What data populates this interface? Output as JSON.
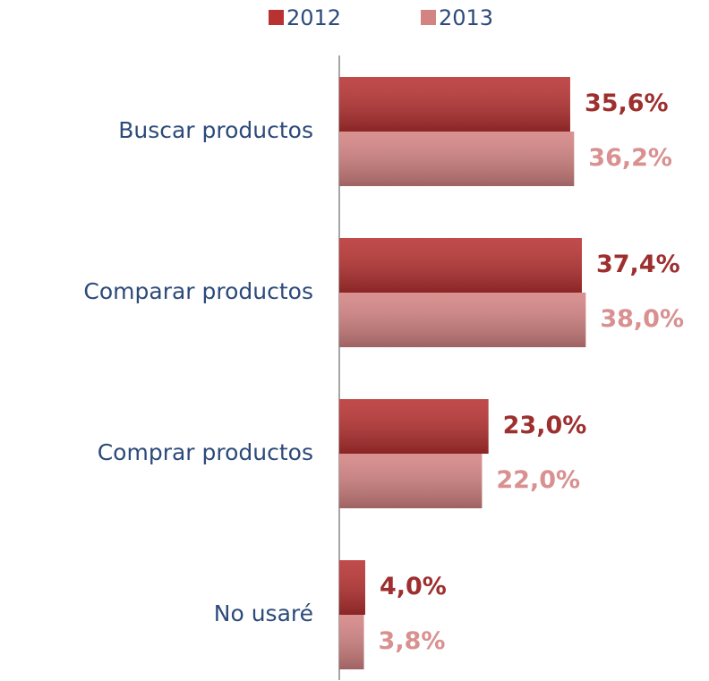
{
  "chart_data": {
    "type": "barh",
    "categories": [
      "Buscar productos",
      "Comparar productos",
      "Comprar productos",
      "No usaré"
    ],
    "series": [
      {
        "name": "2012",
        "color": "#b83232",
        "label_color": "#9e2f2f",
        "values": [
          35.6,
          37.4,
          23.0,
          4.0
        ],
        "value_labels": [
          "35,6%",
          "37,4%",
          "23,0%",
          "4,0%"
        ]
      },
      {
        "name": "2013",
        "color": "#d48383",
        "label_color": "#d99090",
        "values": [
          36.2,
          38.0,
          22.0,
          3.8
        ],
        "value_labels": [
          "36,2%",
          "38,0%",
          "22,0%",
          "3,8%"
        ]
      }
    ],
    "xlim": [
      0,
      57
    ],
    "legend": "top"
  }
}
